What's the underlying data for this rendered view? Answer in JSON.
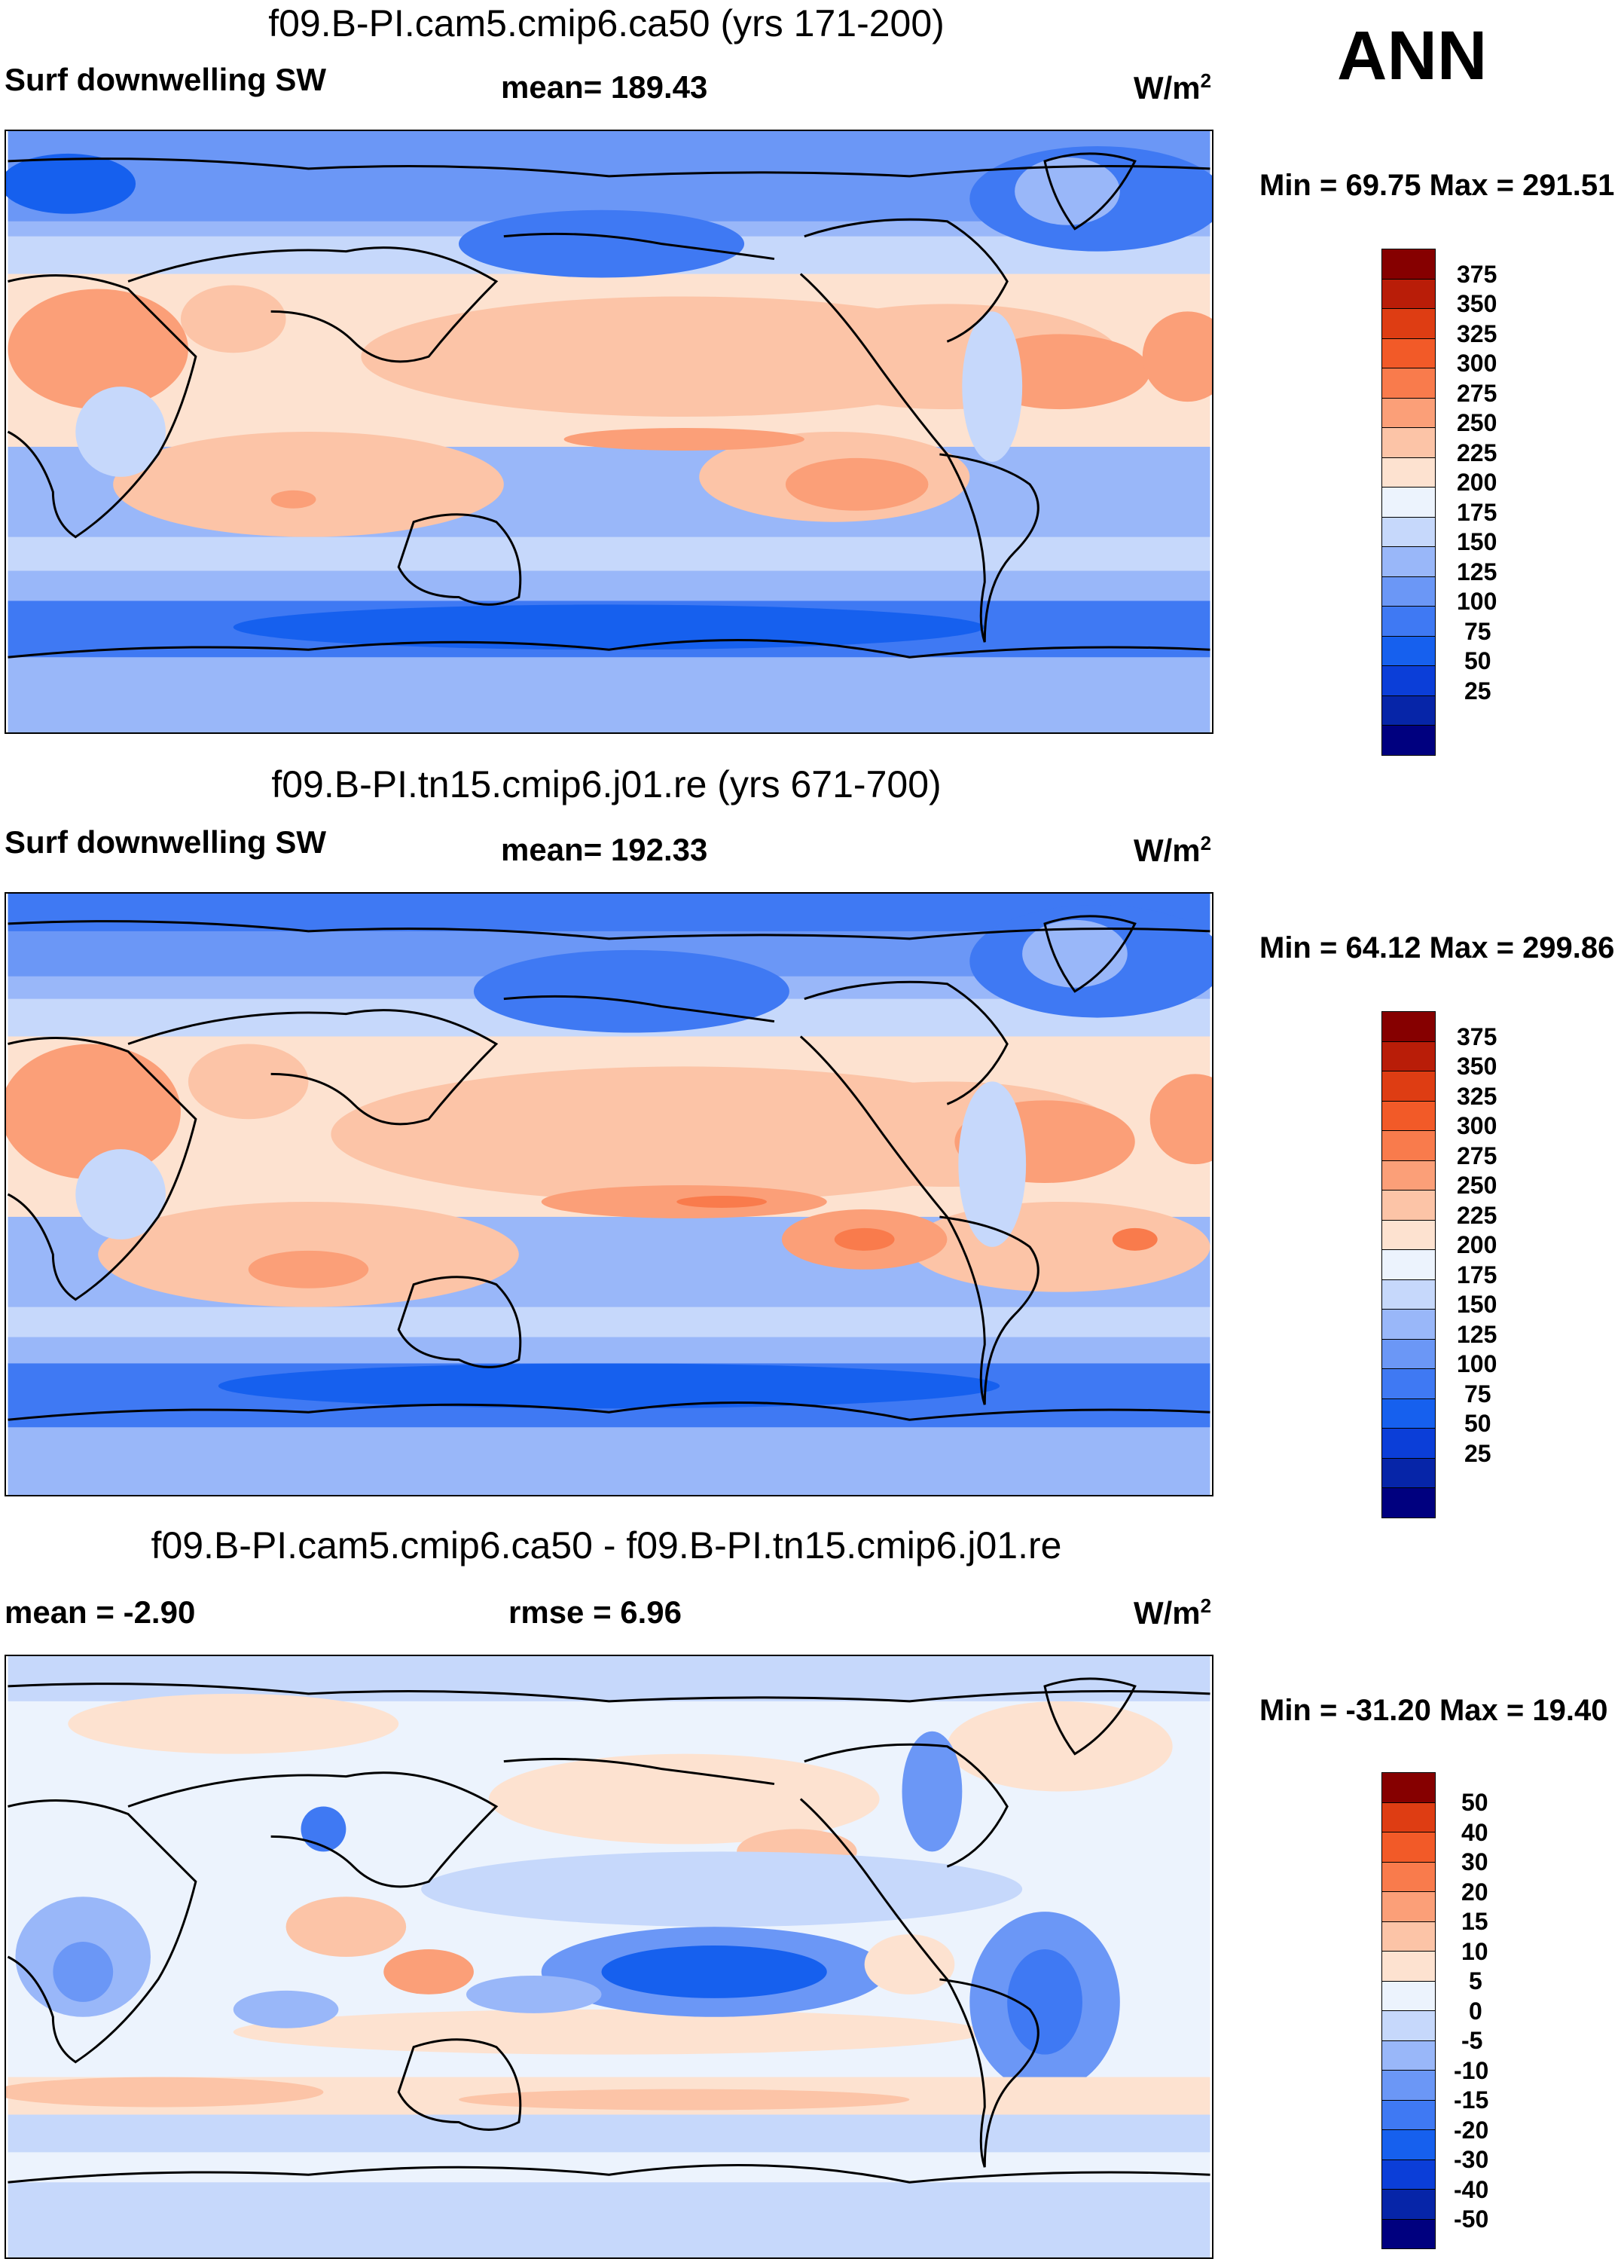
{
  "season": "ANN",
  "colors": {
    "cmap_abs": [
      "#00007f",
      "#0625a8",
      "#0b3ed8",
      "#1660ee",
      "#3f79f3",
      "#6b97f6",
      "#99b7f9",
      "#c6d8fb",
      "#ecf3fd",
      "#fde2d0",
      "#fcc4a7",
      "#fb9f78",
      "#f97b4c",
      "#f25a28",
      "#de3d13",
      "#b91d08",
      "#860000"
    ],
    "cmap_diff": [
      "#00007f",
      "#0625a8",
      "#0b3ed8",
      "#1660ee",
      "#3f79f3",
      "#6b97f6",
      "#99b7f9",
      "#c6d8fb",
      "#ecf3fd",
      "#fde2d0",
      "#fcc4a7",
      "#fb9f78",
      "#f97b4c",
      "#f25a28",
      "#de3d13",
      "#860000"
    ]
  },
  "panels": [
    {
      "title": "f09.B-PI.cam5.cmip6.ca50 (yrs 171-200)",
      "left_label": "Surf downwelling SW",
      "center_label": "mean= 189.43",
      "units": "W/m",
      "units_sup": "2",
      "minmax": "Min =  69.75 Max = 291.51",
      "colorbar_ticks": [
        "375",
        "350",
        "325",
        "300",
        "275",
        "250",
        "225",
        "200",
        "175",
        "150",
        "125",
        "100",
        "75",
        "50",
        "25"
      ]
    },
    {
      "title": "f09.B-PI.tn15.cmip6.j01.re (yrs 671-700)",
      "left_label": "Surf downwelling SW",
      "center_label": "mean= 192.33",
      "units": "W/m",
      "units_sup": "2",
      "minmax": "Min =  64.12 Max = 299.86",
      "colorbar_ticks": [
        "375",
        "350",
        "325",
        "300",
        "275",
        "250",
        "225",
        "200",
        "175",
        "150",
        "125",
        "100",
        "75",
        "50",
        "25"
      ]
    },
    {
      "title": "f09.B-PI.cam5.cmip6.ca50 - f09.B-PI.tn15.cmip6.j01.re",
      "left_label": "mean =  -2.90",
      "center_label": "rmse =   6.96",
      "units": "W/m",
      "units_sup": "2",
      "minmax": "Min = -31.20 Max =  19.40",
      "colorbar_ticks": [
        "50",
        "40",
        "30",
        "20",
        "15",
        "10",
        "5",
        "0",
        "-5",
        "-10",
        "-15",
        "-20",
        "-30",
        "-40",
        "-50"
      ]
    }
  ],
  "chart_data": [
    {
      "type": "heatmap",
      "title": "f09.B-PI.cam5.cmip6.ca50 (yrs 171-200)",
      "variable": "Surf downwelling SW",
      "units": "W/m2",
      "mean": 189.43,
      "min": 69.75,
      "max": 291.51,
      "levels": [
        25,
        50,
        75,
        100,
        125,
        150,
        175,
        200,
        225,
        250,
        275,
        300,
        325,
        350,
        375
      ]
    },
    {
      "type": "heatmap",
      "title": "f09.B-PI.tn15.cmip6.j01.re (yrs 671-700)",
      "variable": "Surf downwelling SW",
      "units": "W/m2",
      "mean": 192.33,
      "min": 64.12,
      "max": 299.86,
      "levels": [
        25,
        50,
        75,
        100,
        125,
        150,
        175,
        200,
        225,
        250,
        275,
        300,
        325,
        350,
        375
      ]
    },
    {
      "type": "heatmap",
      "title": "f09.B-PI.cam5.cmip6.ca50 - f09.B-PI.tn15.cmip6.j01.re",
      "variable": "difference",
      "units": "W/m2",
      "mean": -2.9,
      "rmse": 6.96,
      "min": -31.2,
      "max": 19.4,
      "levels": [
        -50,
        -40,
        -30,
        -20,
        -15,
        -10,
        -5,
        0,
        5,
        10,
        15,
        20,
        30,
        40,
        50
      ]
    }
  ]
}
